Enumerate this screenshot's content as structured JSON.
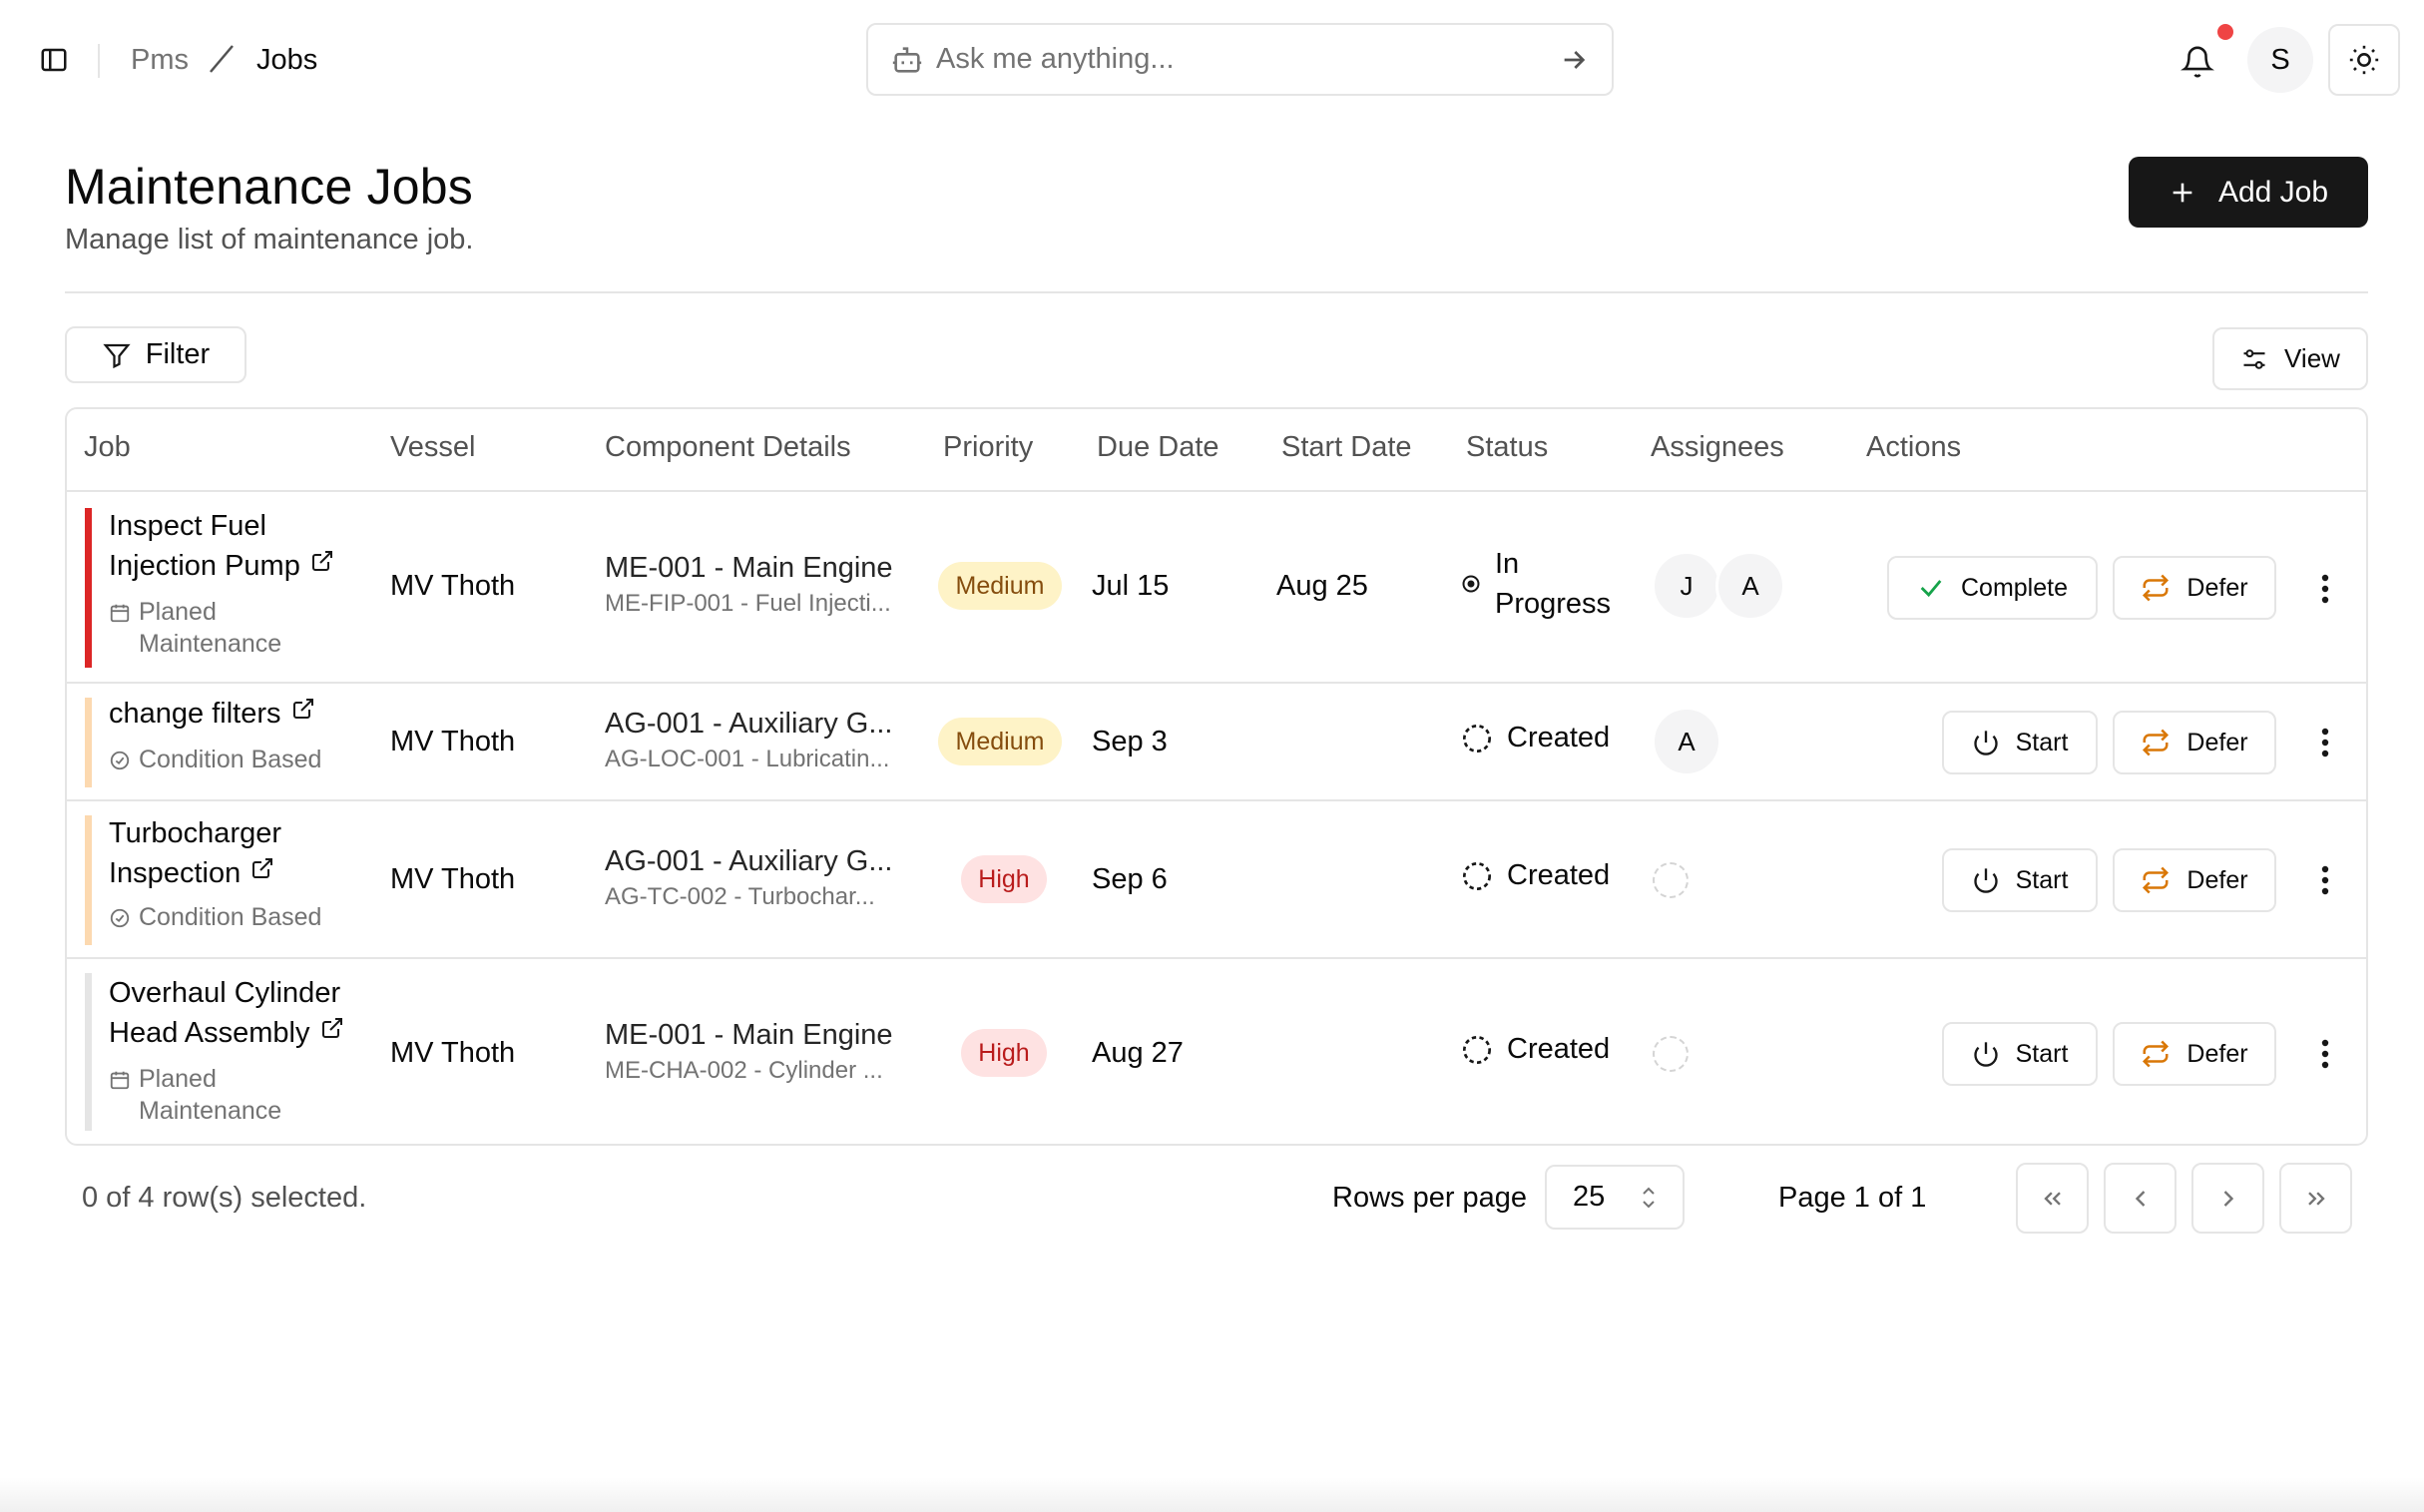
{
  "breadcrumb": {
    "root": "Pms",
    "current": "Jobs"
  },
  "search": {
    "placeholder": "Ask me anything..."
  },
  "user": {
    "initial": "S"
  },
  "page": {
    "title": "Maintenance Jobs",
    "subtitle": "Manage list of maintenance job."
  },
  "toolbar": {
    "add_label": "Add Job",
    "filter_label": "Filter",
    "view_label": "View"
  },
  "table": {
    "columns": [
      "Job",
      "Vessel",
      "Component Details",
      "Priority",
      "Due Date",
      "Start Date",
      "Status",
      "Assignees",
      "Actions"
    ],
    "rows": [
      {
        "job_line1": "Inspect Fuel",
        "job_line2": "Injection Pump",
        "type_line1": "Planed",
        "type_line2": "Maintenance",
        "type_icon": "calendar-icon",
        "vessel": "MV Thoth",
        "component_main": "ME-001 - Main Engine",
        "component_sub": "ME-FIP-001 - Fuel Injecti...",
        "priority": "Medium",
        "due": "Jul 15",
        "start": "Aug 25",
        "status_line1": "In",
        "status_line2": "Progress",
        "assignees": [
          "J",
          "A"
        ],
        "primary_action": "Complete",
        "secondary_action": "Defer",
        "bar_color": "#dc2626"
      },
      {
        "job_line1": "change filters",
        "type_line1": "Condition Based",
        "type_icon": "gauge-icon",
        "vessel": "MV Thoth",
        "component_main": "AG-001 - Auxiliary G...",
        "component_sub": "AG-LOC-001 - Lubricatin...",
        "priority": "Medium",
        "due": "Sep 3",
        "start": "",
        "status_line1": "Created",
        "assignees": [
          "A"
        ],
        "primary_action": "Start",
        "secondary_action": "Defer",
        "bar_color": "#fcd9b0"
      },
      {
        "job_line1": "Turbocharger",
        "job_line2": "Inspection",
        "type_line1": "Condition Based",
        "type_icon": "gauge-icon",
        "vessel": "MV Thoth",
        "component_main": "AG-001 - Auxiliary G...",
        "component_sub": "AG-TC-002 - Turbochar...",
        "priority": "High",
        "due": "Sep 6",
        "start": "",
        "status_line1": "Created",
        "assignees": [],
        "primary_action": "Start",
        "secondary_action": "Defer",
        "bar_color": "#fcd9b0"
      },
      {
        "job_line1": "Overhaul Cylinder",
        "job_line2": "Head Assembly",
        "type_line1": "Planed",
        "type_line2": "Maintenance",
        "type_icon": "calendar-icon",
        "vessel": "MV Thoth",
        "component_main": "ME-001 - Main Engine",
        "component_sub": "ME-CHA-002 - Cylinder ...",
        "priority": "High",
        "due": "Aug 27",
        "start": "",
        "status_line1": "Created",
        "assignees": [],
        "primary_action": "Start",
        "secondary_action": "Defer",
        "bar_color": "#e5e5e5"
      }
    ]
  },
  "footer": {
    "selection": "0 of 4 row(s) selected.",
    "rows_per_page_label": "Rows per page",
    "rows_per_page_value": "25",
    "page_info": "Page 1 of 1"
  },
  "colors": {
    "primary_button": "#171717",
    "notification_dot": "#ef4444",
    "medium_bg": "#fef3c7",
    "high_bg": "#fee2e2",
    "defer_icon": "#d97706",
    "complete_icon": "#16a34a"
  }
}
